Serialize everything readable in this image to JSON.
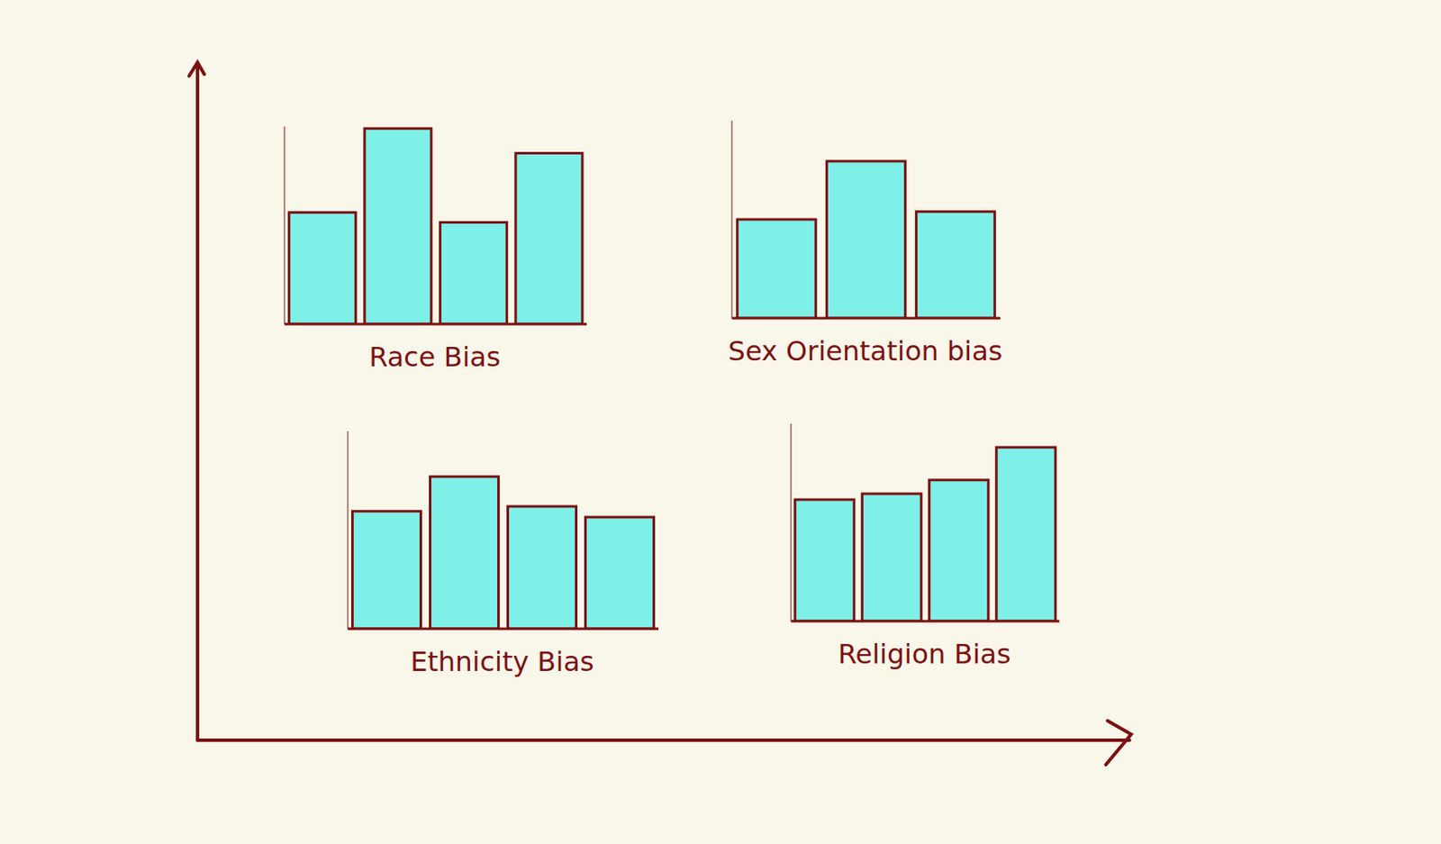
{
  "chart_data": [
    {
      "type": "bar",
      "title": "Race Bias",
      "categories": [
        null,
        null,
        null,
        null
      ],
      "values": [
        113,
        198,
        103,
        173
      ],
      "color": "#7ff0e8",
      "ylim": [
        0,
        200
      ],
      "tick_labels": false
    },
    {
      "type": "bar",
      "title": "Sex Orientation bias",
      "categories": [
        null,
        null,
        null
      ],
      "values": [
        100,
        159,
        108
      ],
      "color": "#7ff0e8",
      "ylim": [
        0,
        200
      ],
      "tick_labels": false
    },
    {
      "type": "bar",
      "title": "Ethnicity Bias",
      "categories": [
        null,
        null,
        null,
        null
      ],
      "values": [
        119,
        154,
        124,
        113
      ],
      "color": "#7ff0e8",
      "ylim": [
        0,
        200
      ],
      "tick_labels": false
    },
    {
      "type": "bar",
      "title": "Religion Bias",
      "categories": [
        null,
        null,
        null,
        null
      ],
      "values": [
        123,
        129,
        143,
        176
      ],
      "color": "#7ff0e8",
      "ylim": [
        0,
        200
      ],
      "tick_labels": false
    }
  ]
}
